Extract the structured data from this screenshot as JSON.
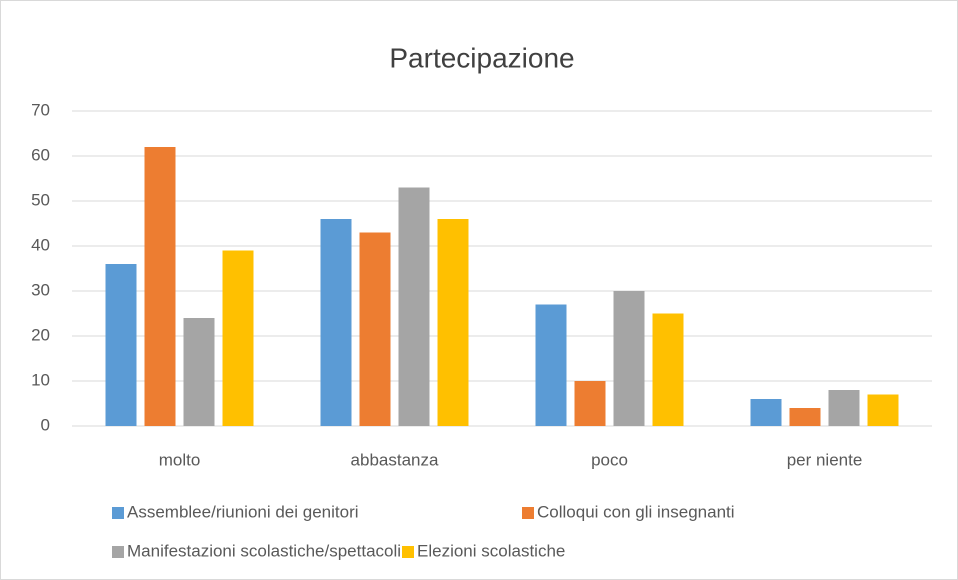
{
  "chart_data": {
    "type": "bar",
    "title": "Partecipazione",
    "categories": [
      "molto",
      "abbastanza",
      "poco",
      "per niente"
    ],
    "series": [
      {
        "name": "Assemblee/riunioni dei genitori",
        "color": "#5b9bd5",
        "values": [
          36,
          46,
          27,
          6
        ]
      },
      {
        "name": "Colloqui con gli insegnanti",
        "color": "#ed7d31",
        "values": [
          62,
          43,
          10,
          4
        ]
      },
      {
        "name": "Manifestazioni scolastiche/spettacoli",
        "color": "#a5a5a5",
        "values": [
          24,
          53,
          30,
          8
        ]
      },
      {
        "name": "Elezioni scolastiche",
        "color": "#ffc000",
        "values": [
          39,
          46,
          25,
          7
        ]
      }
    ],
    "ylim": [
      0,
      70
    ],
    "yticks": [
      0,
      10,
      20,
      30,
      40,
      50,
      60,
      70
    ],
    "grid": true
  }
}
